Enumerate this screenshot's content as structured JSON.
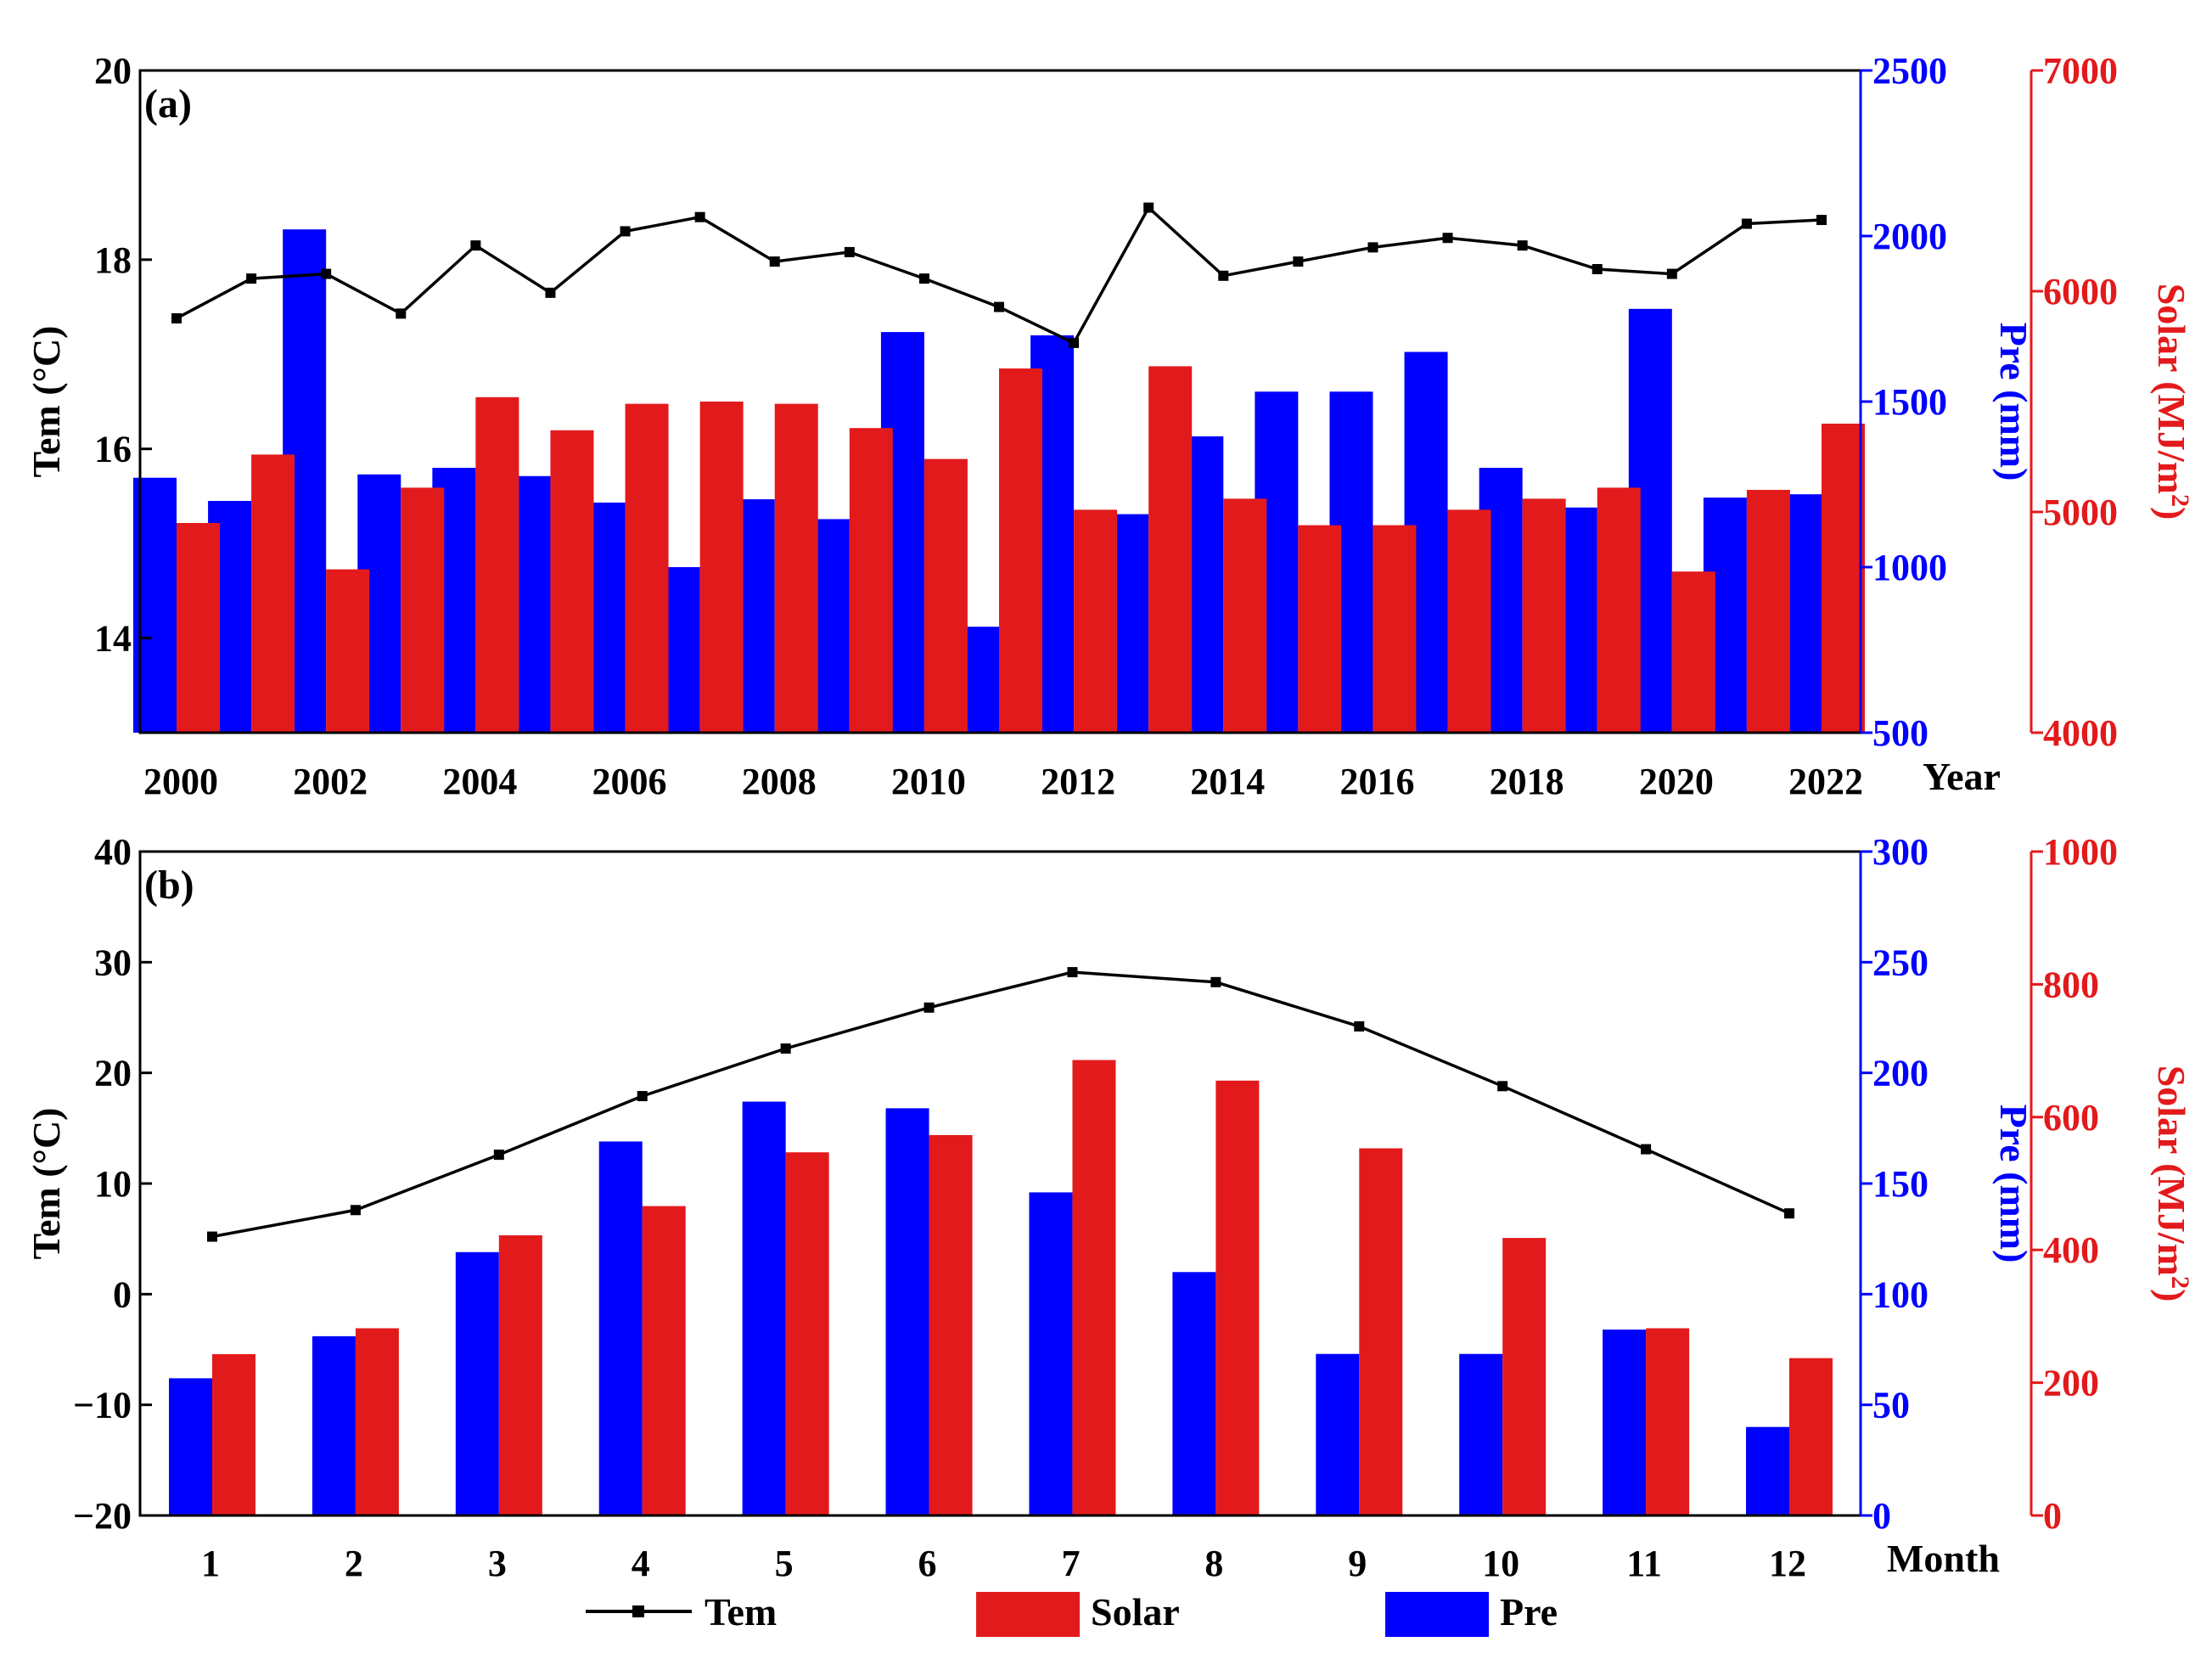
{
  "colors": {
    "tem": "#000000",
    "pre": "#0000ff",
    "solar": "#e31a1c",
    "axis": "#000000"
  },
  "legend": {
    "tem": "Tem",
    "solar": "Solar",
    "pre": "Pre"
  },
  "chart_data": [
    {
      "type": "bar",
      "panel_label": "(a)",
      "xlabel": "Year",
      "ylabel_left": "Tem (°C)",
      "ylabel_right1": "Pre (mm)",
      "ylabel_right2_main": "Solar (MJ/m",
      "ylabel_right2_sup": "2",
      "ylabel_right2_tail": ")",
      "categories": [
        2000,
        2001,
        2002,
        2003,
        2004,
        2005,
        2006,
        2007,
        2008,
        2009,
        2010,
        2011,
        2012,
        2013,
        2014,
        2015,
        2016,
        2017,
        2018,
        2019,
        2020,
        2021,
        2022
      ],
      "x_tick_labels": [
        "2000",
        "2002",
        "2004",
        "2006",
        "2008",
        "2010",
        "2012",
        "2014",
        "2016",
        "2018",
        "2020",
        "2022"
      ],
      "tem_ylim": [
        13,
        20
      ],
      "tem_ticks": [
        14,
        16,
        18,
        20
      ],
      "pre_ylim": [
        500,
        2500
      ],
      "pre_ticks": [
        500,
        1000,
        1500,
        2000,
        2500
      ],
      "solar_ylim": [
        4000,
        7000
      ],
      "solar_ticks": [
        4000,
        5000,
        6000,
        7000
      ],
      "series": [
        {
          "name": "Tem",
          "axis": "left",
          "kind": "line",
          "values": [
            17.38,
            17.8,
            17.85,
            17.43,
            18.15,
            17.65,
            18.3,
            18.45,
            17.98,
            18.08,
            17.8,
            17.5,
            17.12,
            18.55,
            17.83,
            17.98,
            18.13,
            18.23,
            18.15,
            17.9,
            17.85,
            18.38,
            18.42
          ]
        },
        {
          "name": "Pre",
          "axis": "right1",
          "kind": "bar",
          "values": [
            1270,
            1200,
            2020,
            1280,
            1300,
            1275,
            1195,
            1000,
            1205,
            1145,
            1710,
            820,
            1700,
            1160,
            1395,
            1530,
            1530,
            1650,
            1300,
            1180,
            1780,
            1210,
            1220
          ]
        },
        {
          "name": "Solar",
          "axis": "right2",
          "kind": "bar",
          "values": [
            4950,
            5260,
            4740,
            5110,
            5520,
            5370,
            5490,
            5500,
            5490,
            5380,
            5240,
            5650,
            5010,
            5660,
            5060,
            4940,
            4940,
            5010,
            5060,
            5110,
            4730,
            5100,
            5400
          ]
        }
      ]
    },
    {
      "type": "bar",
      "panel_label": "(b)",
      "xlabel": "Month",
      "ylabel_left": "Tem (°C)",
      "ylabel_right1": "Pre (mm)",
      "ylabel_right2_main": "Solar (MJ/m",
      "ylabel_right2_sup": "2",
      "ylabel_right2_tail": ")",
      "categories": [
        1,
        2,
        3,
        4,
        5,
        6,
        7,
        8,
        9,
        10,
        11,
        12
      ],
      "x_tick_labels": [
        "1",
        "2",
        "3",
        "4",
        "5",
        "6",
        "7",
        "8",
        "9",
        "10",
        "11",
        "12"
      ],
      "tem_ylim": [
        -20,
        40
      ],
      "tem_ticks": [
        -20,
        -10,
        0,
        10,
        20,
        30,
        40
      ],
      "pre_ylim": [
        0,
        300
      ],
      "pre_ticks": [
        0,
        50,
        100,
        150,
        200,
        250,
        300
      ],
      "solar_ylim": [
        0,
        1000
      ],
      "solar_ticks": [
        0,
        200,
        400,
        600,
        800,
        1000
      ],
      "series": [
        {
          "name": "Tem",
          "axis": "left",
          "kind": "line",
          "values": [
            5.2,
            7.6,
            12.6,
            17.9,
            22.2,
            25.9,
            29.1,
            28.2,
            24.2,
            18.8,
            13.1,
            7.3
          ]
        },
        {
          "name": "Pre",
          "axis": "right1",
          "kind": "bar",
          "values": [
            62,
            81,
            119,
            169,
            187,
            184,
            146,
            110,
            73,
            73,
            84,
            40
          ]
        },
        {
          "name": "Solar",
          "axis": "right2",
          "kind": "bar",
          "values": [
            243,
            282,
            422,
            466,
            547,
            573,
            686,
            655,
            553,
            418,
            282,
            237
          ]
        }
      ]
    }
  ]
}
